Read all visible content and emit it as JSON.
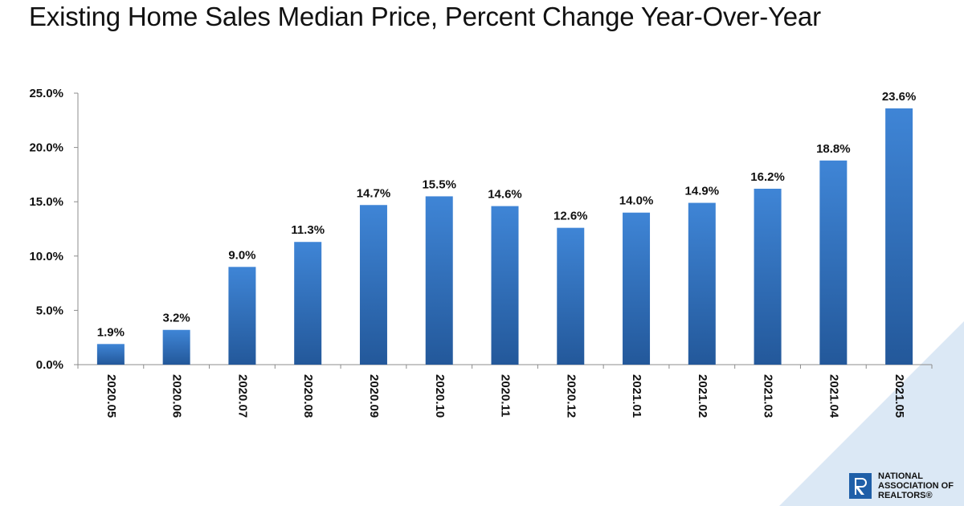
{
  "title": "Existing Home Sales Median Price, Percent Change Year-Over-Year",
  "chart_data": {
    "type": "bar",
    "categories": [
      "2020.05",
      "2020.06",
      "2020.07",
      "2020.08",
      "2020.09",
      "2020.10",
      "2020.11",
      "2020.12",
      "2021.01",
      "2021.02",
      "2021.03",
      "2021.04",
      "2021.05"
    ],
    "values": [
      1.9,
      3.2,
      9.0,
      11.3,
      14.7,
      15.5,
      14.6,
      12.6,
      14.0,
      14.9,
      16.2,
      18.8,
      23.6
    ],
    "value_labels": [
      "1.9%",
      "3.2%",
      "9.0%",
      "11.3%",
      "14.7%",
      "15.5%",
      "14.6%",
      "12.6%",
      "14.0%",
      "14.9%",
      "16.2%",
      "18.8%",
      "23.6%"
    ],
    "y_ticks": [
      0,
      5,
      10,
      15,
      20,
      25
    ],
    "y_tick_labels": [
      "0.0%",
      "5.0%",
      "10.0%",
      "15.0%",
      "20.0%",
      "25.0%"
    ],
    "ylim": [
      0,
      25
    ],
    "grid": false,
    "legend": "none",
    "bar_color_top": "#3f85d6",
    "bar_color_bottom": "#23589a"
  },
  "logo": {
    "text": "NATIONAL\nASSOCIATION OF\nREALTORS®",
    "color": "#1f5fa8"
  },
  "accent": "#dbe8f5"
}
